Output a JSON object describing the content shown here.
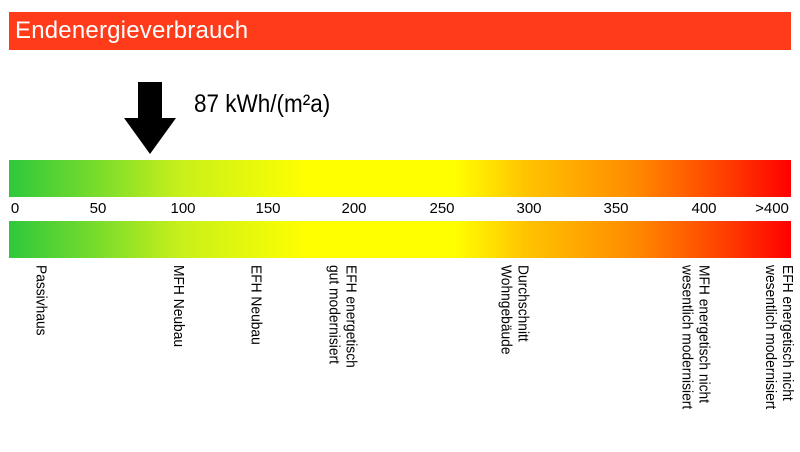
{
  "header": {
    "title": "Endenergieverbrauch"
  },
  "indicator": {
    "value": 87,
    "label": "87 kWh/(m²a)"
  },
  "scale": {
    "min": 0,
    "max": 400,
    "ticks": [
      "0",
      "50",
      "100",
      "150",
      "200",
      "250",
      "300",
      "350",
      "400",
      ">400"
    ],
    "colors": [
      "#2ec83c",
      "#ffff00",
      "#ff0000"
    ]
  },
  "references": [
    {
      "label": "Passivhaus",
      "value": 15
    },
    {
      "label": "MFH Neubau",
      "value": 95
    },
    {
      "label": "EFH Neubau",
      "value": 140
    },
    {
      "label": "EFH energetisch\ngut modernisiert",
      "value": 190
    },
    {
      "label": "Durchschnitt\nWohngebäude",
      "value": 290
    },
    {
      "label": "MFH energetisch nicht\nwesentlich modernisiert",
      "value": 395
    },
    {
      "label": "EFH energetisch nicht\nwesentlich modernisiert",
      "value": 445
    }
  ]
}
